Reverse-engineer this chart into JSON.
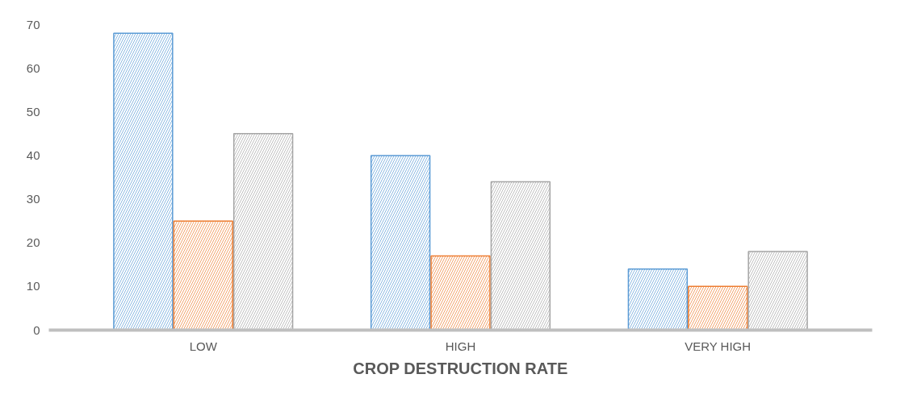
{
  "chart_data": {
    "type": "bar",
    "xlabel": "CROP DESTRUCTION RATE",
    "categories": [
      "LOW",
      "HIGH",
      "VERY HIGH"
    ],
    "series": [
      {
        "color": "#5b9bd5",
        "values": [
          68,
          40,
          14
        ]
      },
      {
        "color": "#ed7d31",
        "values": [
          25,
          17,
          10
        ]
      },
      {
        "color": "#a5a5a5",
        "values": [
          45,
          34,
          18
        ]
      }
    ],
    "ylim": [
      0,
      70
    ],
    "yticks": [
      0,
      10,
      20,
      30,
      40,
      50,
      60,
      70
    ],
    "grid": false
  }
}
